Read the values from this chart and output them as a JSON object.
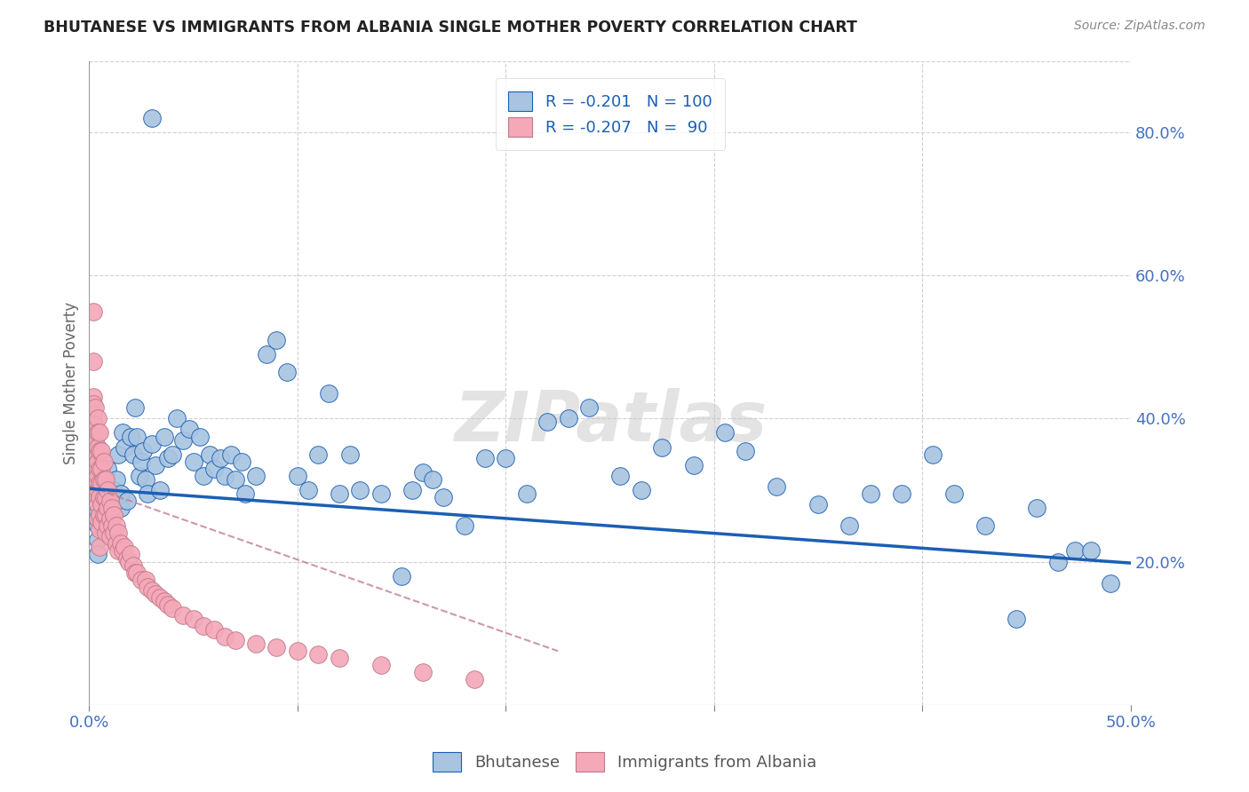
{
  "title": "BHUTANESE VS IMMIGRANTS FROM ALBANIA SINGLE MOTHER POVERTY CORRELATION CHART",
  "source": "Source: ZipAtlas.com",
  "ylabel": "Single Mother Poverty",
  "right_yticks": [
    "20.0%",
    "40.0%",
    "60.0%",
    "80.0%"
  ],
  "right_ytick_vals": [
    0.2,
    0.4,
    0.6,
    0.8
  ],
  "legend1_label": "R = -0.201   N = 100",
  "legend2_label": "R = -0.207   N =  90",
  "legend_bottom1": "Bhutanese",
  "legend_bottom2": "Immigrants from Albania",
  "blue_color": "#a8c4e0",
  "pink_color": "#f4a8b8",
  "line_blue": "#1a5fb4",
  "line_pink": "#c08090",
  "xlim": [
    0.0,
    0.5
  ],
  "ylim": [
    0.0,
    0.9
  ],
  "bhutanese_x": [
    0.03,
    0.004,
    0.004,
    0.004,
    0.004,
    0.004,
    0.006,
    0.006,
    0.006,
    0.007,
    0.008,
    0.008,
    0.009,
    0.009,
    0.01,
    0.01,
    0.01,
    0.01,
    0.012,
    0.012,
    0.013,
    0.014,
    0.015,
    0.015,
    0.016,
    0.017,
    0.018,
    0.02,
    0.021,
    0.022,
    0.023,
    0.024,
    0.025,
    0.026,
    0.027,
    0.028,
    0.03,
    0.032,
    0.034,
    0.036,
    0.038,
    0.04,
    0.042,
    0.045,
    0.048,
    0.05,
    0.053,
    0.055,
    0.058,
    0.06,
    0.063,
    0.065,
    0.068,
    0.07,
    0.073,
    0.075,
    0.08,
    0.085,
    0.09,
    0.095,
    0.1,
    0.105,
    0.11,
    0.115,
    0.12,
    0.125,
    0.13,
    0.14,
    0.15,
    0.155,
    0.16,
    0.165,
    0.17,
    0.18,
    0.19,
    0.2,
    0.21,
    0.22,
    0.23,
    0.24,
    0.255,
    0.265,
    0.275,
    0.29,
    0.305,
    0.315,
    0.33,
    0.35,
    0.365,
    0.375,
    0.39,
    0.405,
    0.415,
    0.43,
    0.445,
    0.455,
    0.465,
    0.473,
    0.481,
    0.49
  ],
  "bhutanese_y": [
    0.82,
    0.295,
    0.27,
    0.25,
    0.23,
    0.21,
    0.31,
    0.29,
    0.265,
    0.31,
    0.285,
    0.265,
    0.33,
    0.275,
    0.295,
    0.28,
    0.26,
    0.25,
    0.3,
    0.28,
    0.315,
    0.35,
    0.295,
    0.275,
    0.38,
    0.36,
    0.285,
    0.375,
    0.35,
    0.415,
    0.375,
    0.32,
    0.34,
    0.355,
    0.315,
    0.295,
    0.365,
    0.335,
    0.3,
    0.375,
    0.345,
    0.35,
    0.4,
    0.37,
    0.385,
    0.34,
    0.375,
    0.32,
    0.35,
    0.33,
    0.345,
    0.32,
    0.35,
    0.315,
    0.34,
    0.295,
    0.32,
    0.49,
    0.51,
    0.465,
    0.32,
    0.3,
    0.35,
    0.435,
    0.295,
    0.35,
    0.3,
    0.295,
    0.18,
    0.3,
    0.325,
    0.315,
    0.29,
    0.25,
    0.345,
    0.345,
    0.295,
    0.395,
    0.4,
    0.415,
    0.32,
    0.3,
    0.36,
    0.335,
    0.38,
    0.355,
    0.305,
    0.28,
    0.25,
    0.295,
    0.295,
    0.35,
    0.295,
    0.25,
    0.12,
    0.275,
    0.2,
    0.215,
    0.215,
    0.17
  ],
  "albania_x": [
    0.002,
    0.002,
    0.002,
    0.002,
    0.002,
    0.002,
    0.002,
    0.002,
    0.003,
    0.003,
    0.003,
    0.003,
    0.003,
    0.003,
    0.003,
    0.004,
    0.004,
    0.004,
    0.004,
    0.004,
    0.004,
    0.004,
    0.004,
    0.005,
    0.005,
    0.005,
    0.005,
    0.005,
    0.005,
    0.005,
    0.005,
    0.006,
    0.006,
    0.006,
    0.006,
    0.006,
    0.007,
    0.007,
    0.007,
    0.007,
    0.008,
    0.008,
    0.008,
    0.008,
    0.009,
    0.009,
    0.009,
    0.01,
    0.01,
    0.01,
    0.011,
    0.011,
    0.012,
    0.012,
    0.013,
    0.013,
    0.014,
    0.014,
    0.015,
    0.016,
    0.017,
    0.018,
    0.019,
    0.02,
    0.021,
    0.022,
    0.023,
    0.025,
    0.027,
    0.028,
    0.03,
    0.032,
    0.034,
    0.036,
    0.038,
    0.04,
    0.045,
    0.05,
    0.055,
    0.06,
    0.065,
    0.07,
    0.08,
    0.09,
    0.1,
    0.11,
    0.12,
    0.14,
    0.16,
    0.185
  ],
  "albania_y": [
    0.55,
    0.48,
    0.43,
    0.42,
    0.405,
    0.39,
    0.375,
    0.35,
    0.415,
    0.39,
    0.37,
    0.355,
    0.335,
    0.315,
    0.295,
    0.4,
    0.38,
    0.36,
    0.34,
    0.32,
    0.3,
    0.28,
    0.26,
    0.38,
    0.355,
    0.33,
    0.31,
    0.29,
    0.265,
    0.245,
    0.22,
    0.355,
    0.33,
    0.31,
    0.28,
    0.255,
    0.34,
    0.315,
    0.29,
    0.265,
    0.315,
    0.29,
    0.265,
    0.24,
    0.3,
    0.275,
    0.25,
    0.285,
    0.26,
    0.235,
    0.275,
    0.25,
    0.265,
    0.24,
    0.25,
    0.225,
    0.24,
    0.215,
    0.225,
    0.215,
    0.22,
    0.205,
    0.2,
    0.21,
    0.195,
    0.185,
    0.185,
    0.175,
    0.175,
    0.165,
    0.16,
    0.155,
    0.15,
    0.145,
    0.14,
    0.135,
    0.125,
    0.12,
    0.11,
    0.105,
    0.095,
    0.09,
    0.085,
    0.08,
    0.075,
    0.07,
    0.065,
    0.055,
    0.045,
    0.035
  ]
}
